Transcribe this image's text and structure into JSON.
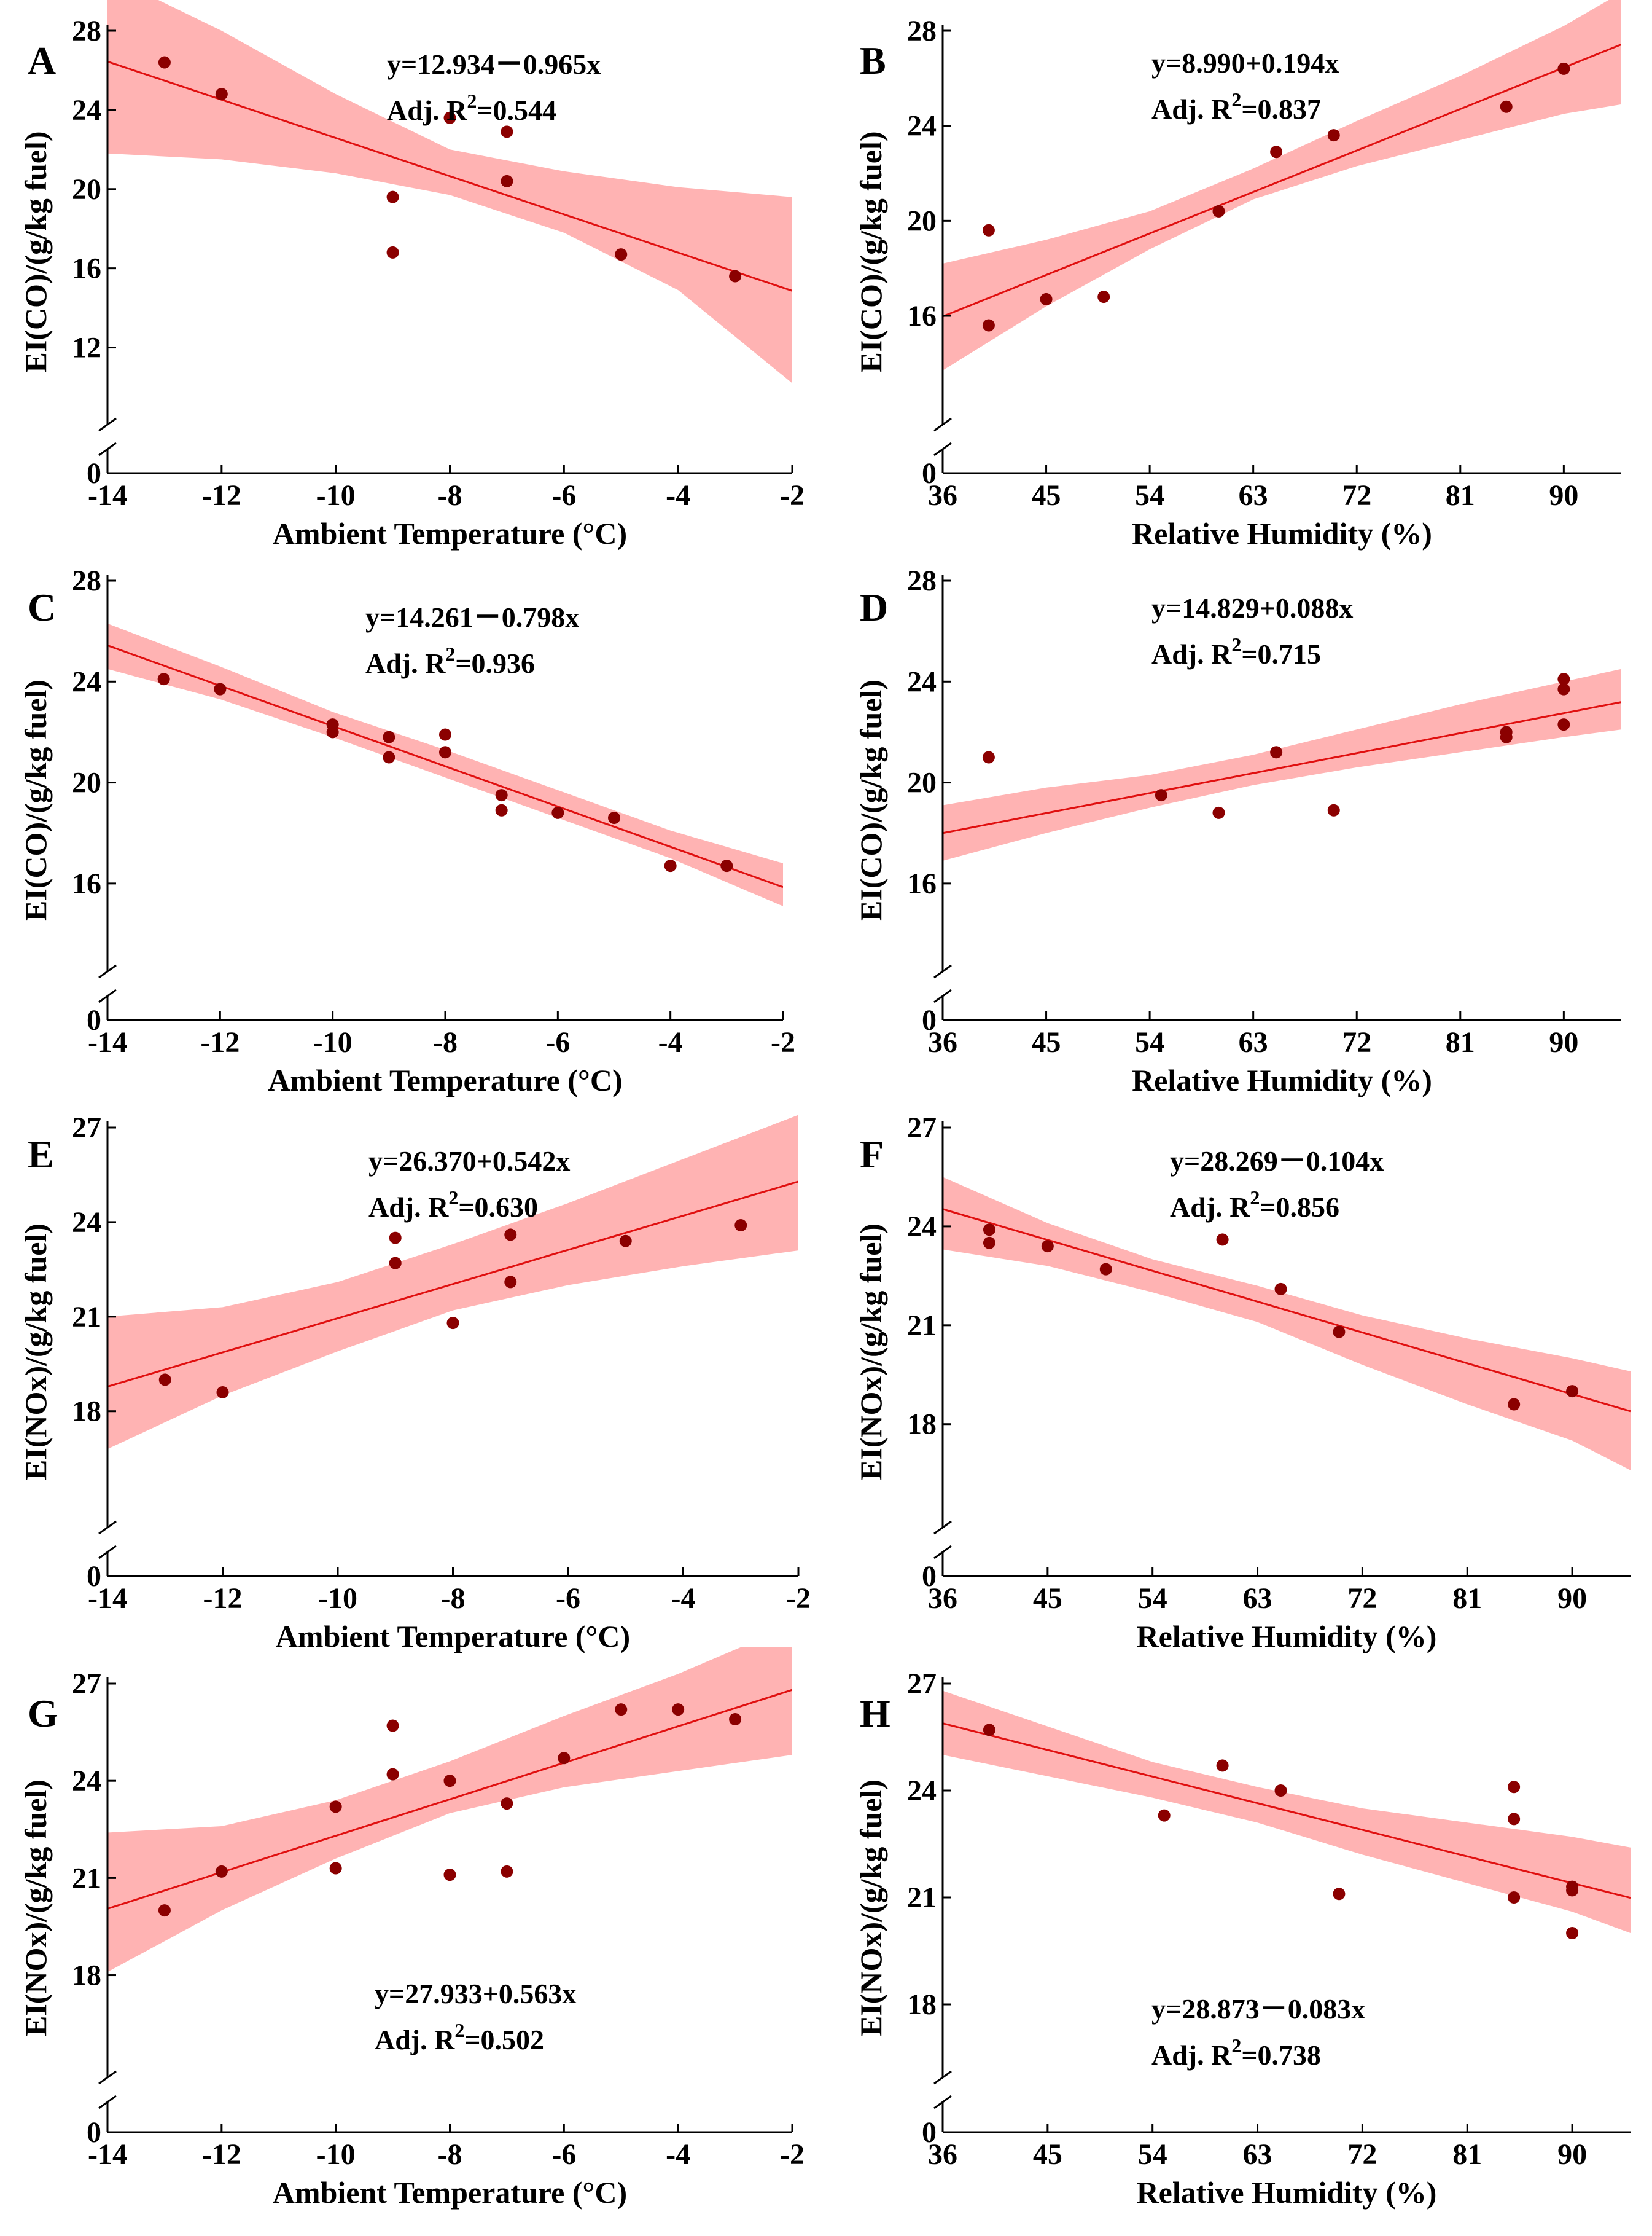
{
  "chart_data": [
    {
      "panel": "A",
      "type": "scatter",
      "xlabel": "Ambient Temperature (°C)",
      "ylabel": "EI(CO)/(g/kg fuel)",
      "xlim": [
        -14,
        -2
      ],
      "xticks": [
        -14,
        -12,
        -10,
        -8,
        -6,
        -4,
        -2
      ],
      "ylim": [
        10,
        28
      ],
      "yticks": [
        0,
        12,
        16,
        20,
        24,
        28
      ],
      "axis_break": true,
      "equation": "y=12.934－0.965x",
      "r2_label": "Adj. R",
      "r2_exp": "2",
      "r2_value": "=0.544",
      "fit": {
        "intercept": 12.934,
        "slope": -0.965
      },
      "band": {
        "x": [
          -14,
          -12,
          -10,
          -8,
          -6,
          -4,
          -2
        ],
        "lower": [
          21.8,
          21.5,
          20.8,
          19.7,
          17.8,
          14.9,
          10.2
        ],
        "upper": [
          30.8,
          28.0,
          24.8,
          22.0,
          20.9,
          20.1,
          19.6
        ]
      },
      "points": [
        {
          "x": -13,
          "y": 26.4
        },
        {
          "x": -12,
          "y": 24.8
        },
        {
          "x": -9,
          "y": 19.6
        },
        {
          "x": -9,
          "y": 16.8
        },
        {
          "x": -8,
          "y": 23.6
        },
        {
          "x": -7,
          "y": 22.9
        },
        {
          "x": -7,
          "y": 20.4
        },
        {
          "x": -5,
          "y": 16.7
        },
        {
          "x": -3,
          "y": 15.6
        }
      ]
    },
    {
      "panel": "B",
      "type": "scatter",
      "xlabel": "Relative Humidity (%)",
      "ylabel": "EI(CO)/(g/kg fuel)",
      "xlim": [
        36,
        95
      ],
      "xticks": [
        36,
        45,
        54,
        63,
        72,
        81,
        90
      ],
      "ylim": [
        13,
        28
      ],
      "yticks": [
        0,
        16,
        20,
        24,
        28
      ],
      "axis_break": true,
      "equation": "y=8.990+0.194x",
      "r2_label": "Adj. R",
      "r2_exp": "2",
      "r2_value": "=0.837",
      "fit": {
        "intercept": 8.99,
        "slope": 0.194
      },
      "band": {
        "x": [
          36,
          45,
          54,
          63,
          72,
          81,
          90,
          95
        ],
        "lower": [
          13.7,
          16.4,
          18.8,
          20.9,
          22.3,
          23.4,
          24.5,
          24.9
        ],
        "upper": [
          18.2,
          19.2,
          20.4,
          22.2,
          24.2,
          26.1,
          28.2,
          29.6
        ]
      },
      "points": [
        {
          "x": 40,
          "y": 15.6
        },
        {
          "x": 40,
          "y": 19.6
        },
        {
          "x": 45,
          "y": 16.7
        },
        {
          "x": 50,
          "y": 16.8
        },
        {
          "x": 60,
          "y": 20.4
        },
        {
          "x": 65,
          "y": 22.9
        },
        {
          "x": 70,
          "y": 23.6
        },
        {
          "x": 85,
          "y": 24.8
        },
        {
          "x": 90,
          "y": 26.4
        }
      ]
    },
    {
      "panel": "C",
      "type": "scatter",
      "xlabel": "Ambient Temperature (°C)",
      "ylabel": "EI(CO)/(g/kg fuel)",
      "xlim": [
        -14,
        -2
      ],
      "xticks": [
        -14,
        -12,
        -10,
        -8,
        -6,
        -4,
        -2
      ],
      "ylim": [
        14,
        28
      ],
      "yticks": [
        0,
        16,
        20,
        24,
        28
      ],
      "axis_break": true,
      "equation": "y=14.261－0.798x",
      "r2_label": "Adj. R",
      "r2_exp": "2",
      "r2_value": "=0.936",
      "fit": {
        "intercept": 14.261,
        "slope": -0.798
      },
      "band": {
        "x": [
          -14,
          -12,
          -10,
          -8,
          -6,
          -4,
          -2
        ],
        "lower": [
          24.5,
          23.3,
          21.8,
          20.2,
          18.6,
          17.0,
          15.1
        ],
        "upper": [
          26.3,
          24.6,
          22.8,
          21.3,
          19.7,
          18.1,
          16.8
        ]
      },
      "points": [
        {
          "x": -13,
          "y": 24.1
        },
        {
          "x": -12,
          "y": 23.7
        },
        {
          "x": -10,
          "y": 22.3
        },
        {
          "x": -10,
          "y": 22.0
        },
        {
          "x": -9,
          "y": 21.8
        },
        {
          "x": -9,
          "y": 21.0
        },
        {
          "x": -8,
          "y": 21.9
        },
        {
          "x": -8,
          "y": 21.2
        },
        {
          "x": -7,
          "y": 19.5
        },
        {
          "x": -7,
          "y": 18.9
        },
        {
          "x": -6,
          "y": 18.8
        },
        {
          "x": -5,
          "y": 18.6
        },
        {
          "x": -4,
          "y": 16.7
        },
        {
          "x": -3,
          "y": 16.7
        }
      ]
    },
    {
      "panel": "D",
      "type": "scatter",
      "xlabel": "Relative Humidity (%)",
      "ylabel": "EI(CO)/(g/kg fuel)",
      "xlim": [
        36,
        95
      ],
      "xticks": [
        36,
        45,
        54,
        63,
        72,
        81,
        90
      ],
      "ylim": [
        14,
        28
      ],
      "yticks": [
        0,
        16,
        20,
        24,
        28
      ],
      "axis_break": true,
      "equation": "y=14.829+0.088x",
      "r2_label": "Adj. R",
      "r2_exp": "2",
      "r2_value": "=0.715",
      "fit": {
        "intercept": 14.829,
        "slope": 0.088
      },
      "band": {
        "x": [
          36,
          45,
          54,
          63,
          72,
          81,
          90,
          95
        ],
        "lower": [
          16.9,
          18.0,
          19.0,
          19.9,
          20.6,
          21.2,
          21.8,
          22.1
        ],
        "upper": [
          19.1,
          19.8,
          20.3,
          21.1,
          22.1,
          23.1,
          24.0,
          24.5
        ]
      },
      "points": [
        {
          "x": 40,
          "y": 21.0
        },
        {
          "x": 55,
          "y": 19.5
        },
        {
          "x": 60,
          "y": 18.8
        },
        {
          "x": 65,
          "y": 21.2
        },
        {
          "x": 70,
          "y": 18.9
        },
        {
          "x": 85,
          "y": 22.0
        },
        {
          "x": 85,
          "y": 21.8
        },
        {
          "x": 90,
          "y": 24.1
        },
        {
          "x": 90,
          "y": 23.7
        },
        {
          "x": 90,
          "y": 22.3
        }
      ]
    },
    {
      "panel": "E",
      "type": "scatter",
      "xlabel": "Ambient Temperature (°C)",
      "ylabel": "EI(NOx)/(g/kg fuel)",
      "xlim": [
        -14,
        -2
      ],
      "xticks": [
        -14,
        -12,
        -10,
        -8,
        -6,
        -4,
        -2
      ],
      "ylim": [
        15.5,
        27
      ],
      "yticks": [
        0,
        18,
        21,
        24,
        27
      ],
      "axis_break": true,
      "equation": "y=26.370+0.542x",
      "r2_label": "Adj. R",
      "r2_exp": "2",
      "r2_value": "=0.630",
      "fit": {
        "intercept": 26.37,
        "slope": 0.542
      },
      "band": {
        "x": [
          -14,
          -12,
          -10,
          -8,
          -6,
          -4,
          -2
        ],
        "lower": [
          16.8,
          18.5,
          19.9,
          21.2,
          22.0,
          22.6,
          23.1
        ],
        "upper": [
          21.0,
          21.3,
          22.1,
          23.3,
          24.6,
          26.0,
          27.4
        ]
      },
      "points": [
        {
          "x": -13,
          "y": 19.0
        },
        {
          "x": -12,
          "y": 18.6
        },
        {
          "x": -9,
          "y": 23.5
        },
        {
          "x": -9,
          "y": 22.7
        },
        {
          "x": -8,
          "y": 20.8
        },
        {
          "x": -7,
          "y": 23.6
        },
        {
          "x": -7,
          "y": 22.1
        },
        {
          "x": -5,
          "y": 23.4
        },
        {
          "x": -3,
          "y": 23.9
        }
      ]
    },
    {
      "panel": "F",
      "type": "scatter",
      "xlabel": "Relative Humidity (%)",
      "ylabel": "EI(NOx)/(g/kg fuel)",
      "xlim": [
        36,
        95
      ],
      "xticks": [
        36,
        45,
        54,
        63,
        72,
        81,
        90
      ],
      "ylim": [
        16,
        27
      ],
      "yticks": [
        0,
        18,
        21,
        24,
        27
      ],
      "axis_break": true,
      "equation": "y=28.269－0.104x",
      "r2_label": "Adj. R",
      "r2_exp": "2",
      "r2_value": "=0.856",
      "fit": {
        "intercept": 28.269,
        "slope": -0.104
      },
      "band": {
        "x": [
          36,
          45,
          54,
          63,
          72,
          81,
          90,
          95
        ],
        "lower": [
          23.3,
          22.8,
          22.0,
          21.1,
          19.8,
          18.6,
          17.5,
          16.6
        ],
        "upper": [
          25.5,
          24.1,
          23.0,
          22.2,
          21.3,
          20.6,
          20.0,
          19.6
        ]
      },
      "points": [
        {
          "x": 40,
          "y": 23.9
        },
        {
          "x": 40,
          "y": 23.5
        },
        {
          "x": 45,
          "y": 23.4
        },
        {
          "x": 50,
          "y": 22.7
        },
        {
          "x": 60,
          "y": 23.6
        },
        {
          "x": 65,
          "y": 22.1
        },
        {
          "x": 70,
          "y": 20.8
        },
        {
          "x": 85,
          "y": 18.6
        },
        {
          "x": 90,
          "y": 19.0
        }
      ]
    },
    {
      "panel": "G",
      "type": "scatter",
      "xlabel": "Ambient Temperature (°C)",
      "ylabel": "EI(NOx)/(g/kg fuel)",
      "xlim": [
        -14,
        -2
      ],
      "xticks": [
        -14,
        -12,
        -10,
        -8,
        -6,
        -4,
        -2
      ],
      "ylim": [
        16,
        27
      ],
      "yticks": [
        0,
        18,
        21,
        24,
        27
      ],
      "axis_break": true,
      "equation": "y=27.933+0.563x",
      "r2_label": "Adj. R",
      "r2_exp": "2",
      "r2_value": "=0.502",
      "fit": {
        "intercept": 27.933,
        "slope": 0.563
      },
      "band": {
        "x": [
          -14,
          -12,
          -10,
          -8,
          -6,
          -4,
          -2
        ],
        "lower": [
          18.1,
          20.0,
          21.6,
          23.0,
          23.8,
          24.3,
          24.8
        ],
        "upper": [
          22.4,
          22.6,
          23.4,
          24.6,
          26.0,
          27.3,
          28.8
        ]
      },
      "points": [
        {
          "x": -13,
          "y": 20.0
        },
        {
          "x": -12,
          "y": 21.2
        },
        {
          "x": -10,
          "y": 23.2
        },
        {
          "x": -10,
          "y": 21.3
        },
        {
          "x": -9,
          "y": 25.7
        },
        {
          "x": -9,
          "y": 24.2
        },
        {
          "x": -8,
          "y": 24.0
        },
        {
          "x": -8,
          "y": 21.1
        },
        {
          "x": -7,
          "y": 23.3
        },
        {
          "x": -7,
          "y": 21.2
        },
        {
          "x": -6,
          "y": 24.7
        },
        {
          "x": -5,
          "y": 26.2
        },
        {
          "x": -4,
          "y": 26.2
        },
        {
          "x": -3,
          "y": 25.9
        }
      ]
    },
    {
      "panel": "H",
      "type": "scatter",
      "xlabel": "Relative Humidity (%)",
      "ylabel": "EI(NOx)/(g/kg fuel)",
      "xlim": [
        36,
        95
      ],
      "xticks": [
        36,
        45,
        54,
        63,
        72,
        81,
        90
      ],
      "ylim": [
        17,
        27
      ],
      "yticks": [
        0,
        18,
        21,
        24,
        27
      ],
      "axis_break": true,
      "equation": "y=28.873－0.083x",
      "r2_label": "Adj. R",
      "r2_exp": "2",
      "r2_value": "=0.738",
      "fit": {
        "intercept": 28.873,
        "slope": -0.083
      },
      "band": {
        "x": [
          36,
          45,
          54,
          63,
          72,
          81,
          90,
          95
        ],
        "lower": [
          25.0,
          24.4,
          23.8,
          23.1,
          22.2,
          21.4,
          20.6,
          20.0
        ],
        "upper": [
          26.8,
          25.8,
          24.8,
          24.1,
          23.5,
          23.1,
          22.7,
          22.4
        ]
      },
      "points": [
        {
          "x": 40,
          "y": 25.7
        },
        {
          "x": 55,
          "y": 23.3
        },
        {
          "x": 60,
          "y": 24.7
        },
        {
          "x": 65,
          "y": 24.0
        },
        {
          "x": 70,
          "y": 21.1
        },
        {
          "x": 85,
          "y": 24.1
        },
        {
          "x": 85,
          "y": 23.2
        },
        {
          "x": 85,
          "y": 21.0
        },
        {
          "x": 90,
          "y": 21.2
        },
        {
          "x": 90,
          "y": 21.3
        },
        {
          "x": 90,
          "y": 20.0
        }
      ]
    }
  ]
}
